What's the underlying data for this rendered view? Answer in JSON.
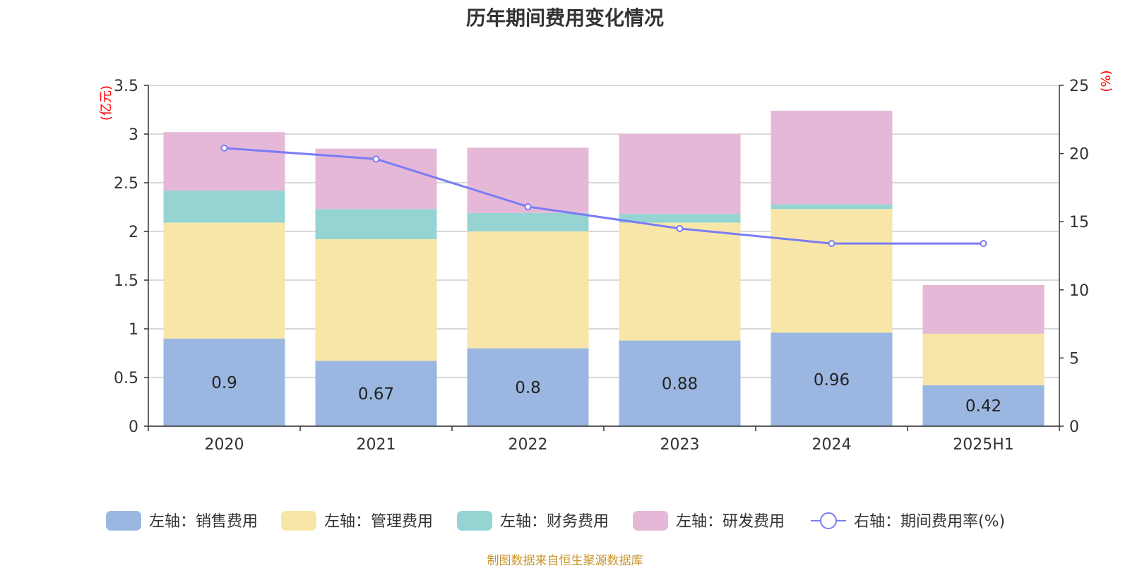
{
  "title": "历年期间费用变化情况",
  "source": "制图数据来自恒生聚源数据库",
  "colors": {
    "sales": "#9bb7e1",
    "admin": "#f7e6a8",
    "finance": "#96d4d4",
    "rnd": "#e6b8d8",
    "rate": "#7a7cf5",
    "axis_unit": "#ff0000",
    "grid": "#cccccc",
    "axis": "#333333"
  },
  "chart_data": {
    "type": "bar",
    "stacked": true,
    "categories": [
      "2020",
      "2021",
      "2022",
      "2023",
      "2024",
      "2025H1"
    ],
    "left_axis_unit": "(亿元)",
    "right_axis_unit": "(%)",
    "ylim_left": [
      0,
      3.5
    ],
    "ylim_right": [
      0,
      25
    ],
    "left_ticks": [
      "0",
      "0.5",
      "1",
      "1.5",
      "2",
      "2.5",
      "3",
      "3.5"
    ],
    "right_ticks": [
      "0",
      "5",
      "10",
      "15",
      "20",
      "25"
    ],
    "grid": true,
    "legend_position": "bottom",
    "series": [
      {
        "name": "左轴：销售费用",
        "key": "sales",
        "axis": "left",
        "values": [
          0.9,
          0.67,
          0.8,
          0.88,
          0.96,
          0.42
        ],
        "labels": [
          "0.9",
          "0.67",
          "0.8",
          "0.88",
          "0.96",
          "0.42"
        ]
      },
      {
        "name": "左轴：管理费用",
        "key": "admin",
        "axis": "left",
        "values": [
          1.19,
          1.25,
          1.2,
          1.21,
          1.27,
          0.53
        ]
      },
      {
        "name": "左轴：财务费用",
        "key": "finance",
        "axis": "left",
        "values": [
          0.33,
          0.31,
          0.19,
          0.09,
          0.05,
          0.0
        ]
      },
      {
        "name": "左轴：研发费用",
        "key": "rnd",
        "axis": "left",
        "values": [
          0.6,
          0.62,
          0.67,
          0.82,
          0.96,
          0.5
        ]
      },
      {
        "name": "右轴：期间费用率(%)",
        "key": "rate",
        "axis": "right",
        "type": "line",
        "values": [
          20.4,
          19.6,
          16.1,
          14.5,
          13.4,
          13.4
        ]
      }
    ]
  }
}
